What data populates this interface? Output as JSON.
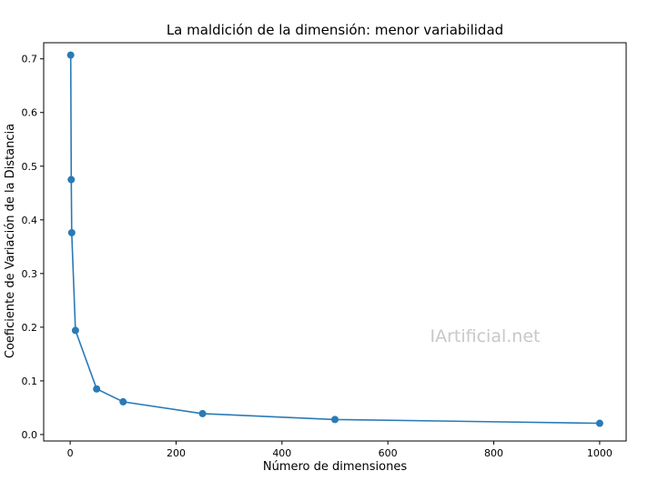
{
  "chart_data": {
    "type": "line",
    "title": "La maldición de la dimensión: menor variabilidad",
    "xlabel": "Número de dimensiones",
    "ylabel": "Coeficiente de Variación de la Distancia",
    "xlim": [
      -50,
      1050
    ],
    "ylim": [
      -0.012,
      0.73
    ],
    "xticks": [
      0,
      200,
      400,
      600,
      800,
      1000
    ],
    "yticks": [
      0.0,
      0.1,
      0.2,
      0.3,
      0.4,
      0.5,
      0.6,
      0.7
    ],
    "xtick_labels": [
      "0",
      "200",
      "400",
      "600",
      "800",
      "1000"
    ],
    "ytick_labels": [
      "0.0",
      "0.1",
      "0.2",
      "0.3",
      "0.4",
      "0.5",
      "0.6",
      "0.7"
    ],
    "grid": false,
    "color": "#2a7ab6",
    "series": [
      {
        "x": [
          1,
          2,
          3,
          10,
          50,
          100,
          250,
          500,
          1000
        ],
        "values": [
          0.707,
          0.475,
          0.376,
          0.194,
          0.085,
          0.061,
          0.039,
          0.028,
          0.021
        ]
      }
    ]
  },
  "watermark": "IArtificial.net"
}
